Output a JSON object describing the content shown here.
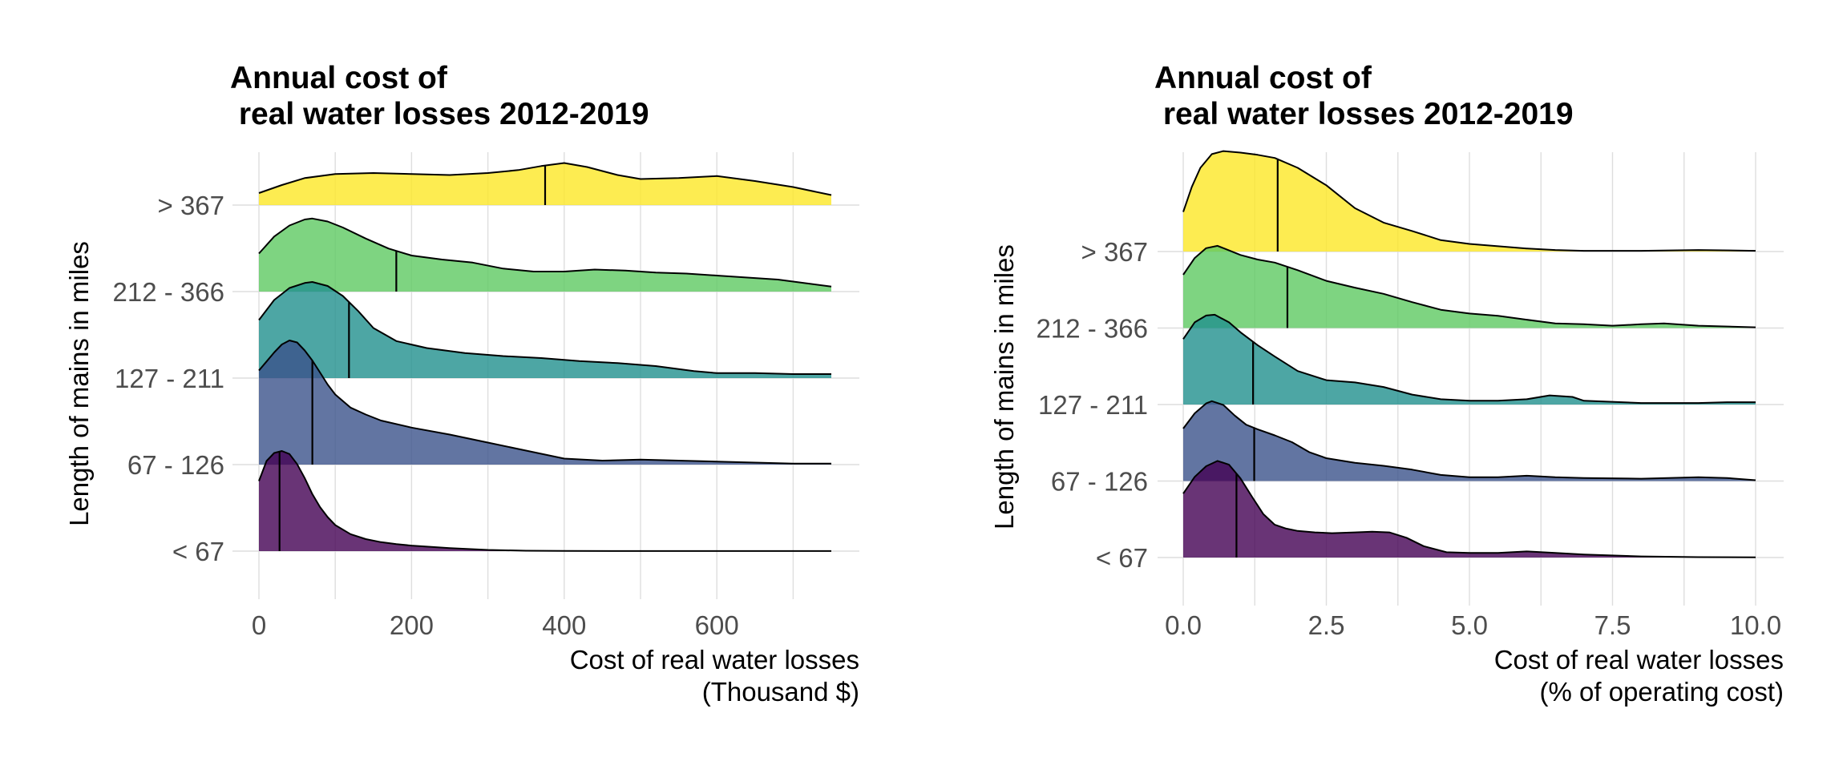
{
  "chart_data": [
    {
      "type": "ridgeline",
      "title_lines": [
        "Annual cost of",
        " real water losses 2012-2019"
      ],
      "ylabel": "Length of mains in miles",
      "xlabel_lines": [
        "Cost of real water losses",
        "(Thousand $)"
      ],
      "x_ticks": [
        0,
        200,
        400,
        600
      ],
      "x_tick_labels": [
        "0",
        "200",
        "400",
        "600"
      ],
      "x_minor_ticks": [
        100,
        300,
        500,
        700
      ],
      "xlim": [
        0,
        750
      ],
      "grid": true,
      "groups": [
        {
          "label": "< 67",
          "color": "#440154",
          "median": 27,
          "density": [
            [
              0,
              0.7
            ],
            [
              10,
              0.9
            ],
            [
              20,
              0.98
            ],
            [
              30,
              1.0
            ],
            [
              40,
              0.97
            ],
            [
              50,
              0.87
            ],
            [
              60,
              0.73
            ],
            [
              70,
              0.57
            ],
            [
              80,
              0.44
            ],
            [
              90,
              0.34
            ],
            [
              100,
              0.26
            ],
            [
              120,
              0.17
            ],
            [
              140,
              0.12
            ],
            [
              160,
              0.09
            ],
            [
              180,
              0.07
            ],
            [
              200,
              0.055
            ],
            [
              250,
              0.03
            ],
            [
              300,
              0.012
            ],
            [
              350,
              0.004
            ],
            [
              400,
              0.002
            ],
            [
              500,
              0.001
            ],
            [
              600,
              0.001
            ],
            [
              700,
              0.001
            ],
            [
              750,
              0.001
            ]
          ]
        },
        {
          "label": "67 - 126",
          "color": "#3b528b",
          "median": 70,
          "density": [
            [
              0,
              0.94
            ],
            [
              10,
              1.03
            ],
            [
              20,
              1.12
            ],
            [
              30,
              1.2
            ],
            [
              40,
              1.24
            ],
            [
              50,
              1.22
            ],
            [
              60,
              1.14
            ],
            [
              70,
              1.04
            ],
            [
              80,
              0.92
            ],
            [
              90,
              0.8
            ],
            [
              100,
              0.7
            ],
            [
              120,
              0.57
            ],
            [
              140,
              0.5
            ],
            [
              160,
              0.44
            ],
            [
              200,
              0.37
            ],
            [
              250,
              0.3
            ],
            [
              300,
              0.22
            ],
            [
              350,
              0.14
            ],
            [
              400,
              0.06
            ],
            [
              450,
              0.04
            ],
            [
              500,
              0.05
            ],
            [
              550,
              0.04
            ],
            [
              600,
              0.03
            ],
            [
              650,
              0.02
            ],
            [
              700,
              0.01
            ],
            [
              750,
              0.01
            ]
          ]
        },
        {
          "label": "127 - 211",
          "color": "#21908d",
          "median": 118,
          "density": [
            [
              0,
              0.58
            ],
            [
              20,
              0.78
            ],
            [
              40,
              0.9
            ],
            [
              60,
              0.95
            ],
            [
              70,
              0.96
            ],
            [
              90,
              0.92
            ],
            [
              110,
              0.82
            ],
            [
              130,
              0.67
            ],
            [
              150,
              0.5
            ],
            [
              180,
              0.37
            ],
            [
              220,
              0.3
            ],
            [
              270,
              0.25
            ],
            [
              320,
              0.22
            ],
            [
              370,
              0.2
            ],
            [
              420,
              0.17
            ],
            [
              470,
              0.15
            ],
            [
              520,
              0.12
            ],
            [
              570,
              0.07
            ],
            [
              600,
              0.05
            ],
            [
              650,
              0.05
            ],
            [
              700,
              0.04
            ],
            [
              750,
              0.04
            ]
          ]
        },
        {
          "label": "212 - 366",
          "color": "#5ec962",
          "median": 180,
          "density": [
            [
              0,
              0.38
            ],
            [
              20,
              0.55
            ],
            [
              40,
              0.66
            ],
            [
              60,
              0.72
            ],
            [
              70,
              0.73
            ],
            [
              90,
              0.7
            ],
            [
              110,
              0.64
            ],
            [
              140,
              0.53
            ],
            [
              170,
              0.43
            ],
            [
              200,
              0.36
            ],
            [
              240,
              0.32
            ],
            [
              280,
              0.29
            ],
            [
              320,
              0.23
            ],
            [
              360,
              0.2
            ],
            [
              400,
              0.2
            ],
            [
              440,
              0.22
            ],
            [
              480,
              0.21
            ],
            [
              520,
              0.19
            ],
            [
              560,
              0.18
            ],
            [
              600,
              0.16
            ],
            [
              640,
              0.14
            ],
            [
              680,
              0.12
            ],
            [
              720,
              0.08
            ],
            [
              750,
              0.05
            ]
          ]
        },
        {
          "label": "> 367",
          "color": "#fde725",
          "median": 375,
          "density": [
            [
              0,
              0.12
            ],
            [
              30,
              0.2
            ],
            [
              60,
              0.27
            ],
            [
              100,
              0.31
            ],
            [
              150,
              0.32
            ],
            [
              200,
              0.31
            ],
            [
              250,
              0.3
            ],
            [
              300,
              0.32
            ],
            [
              340,
              0.35
            ],
            [
              370,
              0.39
            ],
            [
              400,
              0.42
            ],
            [
              430,
              0.38
            ],
            [
              470,
              0.3
            ],
            [
              500,
              0.26
            ],
            [
              550,
              0.27
            ],
            [
              600,
              0.29
            ],
            [
              650,
              0.24
            ],
            [
              700,
              0.18
            ],
            [
              750,
              0.1
            ]
          ]
        }
      ]
    },
    {
      "type": "ridgeline",
      "title_lines": [
        "Annual cost of",
        " real water losses 2012-2019"
      ],
      "ylabel": "Length of mains in miles",
      "xlabel_lines": [
        "Cost of real water losses",
        "(% of operating cost)"
      ],
      "x_ticks": [
        0,
        2.5,
        5,
        7.5,
        10
      ],
      "x_tick_labels": [
        "0.0",
        "2.5",
        "5.0",
        "7.5",
        "10.0"
      ],
      "x_minor_ticks": [
        1.25,
        3.75,
        6.25,
        8.75
      ],
      "xlim": [
        0,
        10
      ],
      "grid": true,
      "groups": [
        {
          "label": "< 67",
          "color": "#440154",
          "median": 0.93,
          "density": [
            [
              0,
              0.84
            ],
            [
              0.2,
              1.06
            ],
            [
              0.4,
              1.2
            ],
            [
              0.6,
              1.27
            ],
            [
              0.8,
              1.22
            ],
            [
              1.0,
              1.04
            ],
            [
              1.2,
              0.8
            ],
            [
              1.4,
              0.57
            ],
            [
              1.6,
              0.43
            ],
            [
              1.8,
              0.38
            ],
            [
              2.0,
              0.35
            ],
            [
              2.3,
              0.33
            ],
            [
              2.6,
              0.32
            ],
            [
              3.0,
              0.33
            ],
            [
              3.3,
              0.34
            ],
            [
              3.6,
              0.33
            ],
            [
              3.9,
              0.26
            ],
            [
              4.2,
              0.15
            ],
            [
              4.6,
              0.07
            ],
            [
              5.0,
              0.06
            ],
            [
              5.5,
              0.06
            ],
            [
              6.0,
              0.08
            ],
            [
              6.5,
              0.06
            ],
            [
              7.0,
              0.04
            ],
            [
              8.0,
              0.015
            ],
            [
              9.0,
              0.005
            ],
            [
              10.0,
              0.002
            ]
          ]
        },
        {
          "label": "67 - 126",
          "color": "#3b528b",
          "median": 1.24,
          "density": [
            [
              0,
              0.69
            ],
            [
              0.2,
              0.89
            ],
            [
              0.4,
              1.02
            ],
            [
              0.5,
              1.05
            ],
            [
              0.7,
              1.0
            ],
            [
              0.9,
              0.86
            ],
            [
              1.1,
              0.74
            ],
            [
              1.3,
              0.68
            ],
            [
              1.6,
              0.6
            ],
            [
              1.9,
              0.51
            ],
            [
              2.2,
              0.38
            ],
            [
              2.5,
              0.3
            ],
            [
              3.0,
              0.24
            ],
            [
              3.5,
              0.2
            ],
            [
              4.0,
              0.15
            ],
            [
              4.5,
              0.08
            ],
            [
              5.0,
              0.05
            ],
            [
              5.5,
              0.05
            ],
            [
              6.0,
              0.07
            ],
            [
              6.5,
              0.05
            ],
            [
              7.0,
              0.04
            ],
            [
              8.0,
              0.03
            ],
            [
              9.0,
              0.05
            ],
            [
              9.5,
              0.04
            ],
            [
              10.0,
              0.01
            ]
          ]
        },
        {
          "label": "127 - 211",
          "color": "#21908d",
          "median": 1.22,
          "density": [
            [
              0,
              0.86
            ],
            [
              0.2,
              1.08
            ],
            [
              0.4,
              1.17
            ],
            [
              0.55,
              1.18
            ],
            [
              0.8,
              1.08
            ],
            [
              1.0,
              0.95
            ],
            [
              1.3,
              0.78
            ],
            [
              1.6,
              0.63
            ],
            [
              2.0,
              0.44
            ],
            [
              2.5,
              0.32
            ],
            [
              3.0,
              0.29
            ],
            [
              3.5,
              0.23
            ],
            [
              4.0,
              0.13
            ],
            [
              4.5,
              0.07
            ],
            [
              5.0,
              0.05
            ],
            [
              5.5,
              0.05
            ],
            [
              6.0,
              0.07
            ],
            [
              6.4,
              0.12
            ],
            [
              6.8,
              0.1
            ],
            [
              7.0,
              0.05
            ],
            [
              8.0,
              0.02
            ],
            [
              9.0,
              0.02
            ],
            [
              9.5,
              0.03
            ],
            [
              10.0,
              0.03
            ]
          ]
        },
        {
          "label": "212 - 366",
          "color": "#5ec962",
          "median": 1.82,
          "density": [
            [
              0,
              0.7
            ],
            [
              0.2,
              0.92
            ],
            [
              0.4,
              1.05
            ],
            [
              0.6,
              1.08
            ],
            [
              0.8,
              1.02
            ],
            [
              1.0,
              0.96
            ],
            [
              1.3,
              0.9
            ],
            [
              1.6,
              0.86
            ],
            [
              2.0,
              0.76
            ],
            [
              2.5,
              0.62
            ],
            [
              3.0,
              0.53
            ],
            [
              3.5,
              0.45
            ],
            [
              4.0,
              0.34
            ],
            [
              4.5,
              0.24
            ],
            [
              5.0,
              0.19
            ],
            [
              5.5,
              0.16
            ],
            [
              6.0,
              0.11
            ],
            [
              6.5,
              0.06
            ],
            [
              7.0,
              0.05
            ],
            [
              7.5,
              0.03
            ],
            [
              8.0,
              0.05
            ],
            [
              8.4,
              0.06
            ],
            [
              9.0,
              0.03
            ],
            [
              10.0,
              0.01
            ]
          ]
        },
        {
          "label": "> 367",
          "color": "#fde725",
          "median": 1.65,
          "density": [
            [
              0,
              0.52
            ],
            [
              0.15,
              0.85
            ],
            [
              0.3,
              1.1
            ],
            [
              0.5,
              1.28
            ],
            [
              0.7,
              1.32
            ],
            [
              1.0,
              1.3
            ],
            [
              1.3,
              1.27
            ],
            [
              1.6,
              1.23
            ],
            [
              2.0,
              1.1
            ],
            [
              2.5,
              0.87
            ],
            [
              3.0,
              0.57
            ],
            [
              3.5,
              0.38
            ],
            [
              4.0,
              0.27
            ],
            [
              4.5,
              0.15
            ],
            [
              5.0,
              0.1
            ],
            [
              5.5,
              0.07
            ],
            [
              6.0,
              0.04
            ],
            [
              6.5,
              0.02
            ],
            [
              7.0,
              0.01
            ],
            [
              8.0,
              0.01
            ],
            [
              9.0,
              0.02
            ],
            [
              10.0,
              0.01
            ]
          ]
        }
      ]
    }
  ]
}
